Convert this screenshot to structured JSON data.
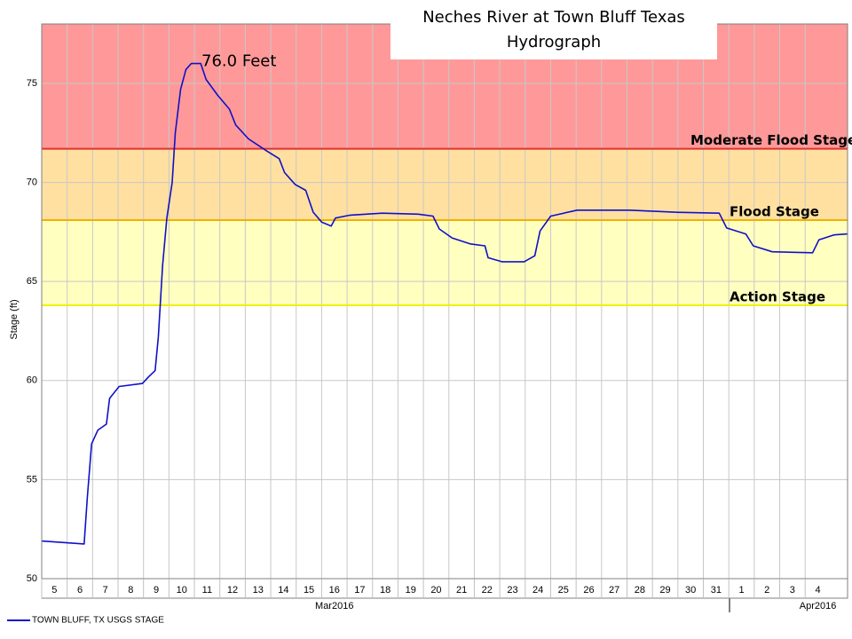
{
  "chart_data": {
    "type": "line",
    "title": [
      "Neches River at Town Bluff Texas",
      "Hydrograph"
    ],
    "ylabel": "Stage (ft)",
    "annotation": {
      "text": "76.0 Feet",
      "x": "2016-03-11T00:00",
      "y": 76.0
    },
    "xlim": [
      "2016-03-05T00:00",
      "2016-04-05T16:00"
    ],
    "ylim": [
      50,
      78
    ],
    "yticks": [
      50,
      55,
      60,
      65,
      70,
      75
    ],
    "grid": true,
    "xticks": [
      {
        "value": "2016-03-05",
        "label": "5"
      },
      {
        "value": "2016-03-06",
        "label": "6"
      },
      {
        "value": "2016-03-07",
        "label": "7"
      },
      {
        "value": "2016-03-08",
        "label": "8"
      },
      {
        "value": "2016-03-09",
        "label": "9"
      },
      {
        "value": "2016-03-10",
        "label": "10"
      },
      {
        "value": "2016-03-11",
        "label": "11"
      },
      {
        "value": "2016-03-12",
        "label": "12"
      },
      {
        "value": "2016-03-13",
        "label": "13"
      },
      {
        "value": "2016-03-14",
        "label": "14"
      },
      {
        "value": "2016-03-15",
        "label": "15"
      },
      {
        "value": "2016-03-16",
        "label": "16"
      },
      {
        "value": "2016-03-17",
        "label": "17"
      },
      {
        "value": "2016-03-18",
        "label": "18"
      },
      {
        "value": "2016-03-19",
        "label": "19"
      },
      {
        "value": "2016-03-20",
        "label": "20"
      },
      {
        "value": "2016-03-21",
        "label": "21"
      },
      {
        "value": "2016-03-22",
        "label": "22"
      },
      {
        "value": "2016-03-23",
        "label": "23"
      },
      {
        "value": "2016-03-24",
        "label": "24"
      },
      {
        "value": "2016-03-25",
        "label": "25"
      },
      {
        "value": "2016-03-26",
        "label": "26"
      },
      {
        "value": "2016-03-27",
        "label": "27"
      },
      {
        "value": "2016-03-28",
        "label": "28"
      },
      {
        "value": "2016-03-29",
        "label": "29"
      },
      {
        "value": "2016-03-30",
        "label": "30"
      },
      {
        "value": "2016-03-31",
        "label": "31"
      },
      {
        "value": "2016-04-01",
        "label": "1"
      },
      {
        "value": "2016-04-02",
        "label": "2"
      },
      {
        "value": "2016-04-03",
        "label": "3"
      },
      {
        "value": "2016-04-04",
        "label": "4"
      }
    ],
    "month_labels": [
      {
        "value": "2016-03-16",
        "label": "Mar2016"
      },
      {
        "value": "2016-04-04",
        "label": "Apr2016"
      }
    ],
    "stages": [
      {
        "name": "Moderate Flood Stage",
        "value": 71.7,
        "line_color": "#e03030",
        "band_color": "#ff9999"
      },
      {
        "name": "Flood Stage",
        "value": 68.1,
        "line_color": "#f0b000",
        "band_color": "#ffe0a0"
      },
      {
        "name": "Action Stage",
        "value": 63.8,
        "line_color": "#f0f000",
        "band_color": "#ffffc0"
      }
    ],
    "series": [
      {
        "name": "TOWN BLUFF, TX USGS STAGE",
        "color": "#1010c8",
        "x": [
          "2016-03-05T00:00",
          "2016-03-06T16:00",
          "2016-03-06T19:00",
          "2016-03-06T23:00",
          "2016-03-07T05:00",
          "2016-03-07T13:00",
          "2016-03-07T16:00",
          "2016-03-08T01:00",
          "2016-03-08T23:00",
          "2016-03-09T05:00",
          "2016-03-09T11:00",
          "2016-03-09T14:00",
          "2016-03-09T18:00",
          "2016-03-09T22:00",
          "2016-03-10T03:00",
          "2016-03-10T06:00",
          "2016-03-10T11:00",
          "2016-03-10T16:00",
          "2016-03-10T21:00",
          "2016-03-11T06:00",
          "2016-03-11T11:00",
          "2016-03-11T22:00",
          "2016-03-12T09:00",
          "2016-03-12T15:00",
          "2016-03-13T03:00",
          "2016-03-13T20:00",
          "2016-03-14T08:00",
          "2016-03-14T13:00",
          "2016-03-14T23:00",
          "2016-03-15T09:00",
          "2016-03-15T16:00",
          "2016-03-16T00:00",
          "2016-03-16T09:00",
          "2016-03-16T13:00",
          "2016-03-17T03:00",
          "2016-03-18T09:00",
          "2016-03-19T19:00",
          "2016-03-20T09:00",
          "2016-03-20T15:00",
          "2016-03-21T03:00",
          "2016-03-21T20:00",
          "2016-03-22T10:00",
          "2016-03-22T13:00",
          "2016-03-23T02:00",
          "2016-03-23T23:00",
          "2016-03-24T09:00",
          "2016-03-24T14:00",
          "2016-03-25T00:00",
          "2016-03-26T01:00",
          "2016-03-28T02:00",
          "2016-03-29T21:00",
          "2016-03-31T15:00",
          "2016-03-31T22:00",
          "2016-04-01T16:00",
          "2016-04-01T23:00",
          "2016-04-02T17:00",
          "2016-04-04T07:00",
          "2016-04-04T13:00",
          "2016-04-05T03:00",
          "2016-04-05T16:00"
        ],
        "values": [
          51.9,
          51.75,
          54.1,
          56.8,
          57.5,
          57.8,
          59.1,
          59.7,
          59.85,
          60.2,
          60.5,
          62.2,
          65.8,
          68.2,
          70.0,
          72.5,
          74.7,
          75.7,
          76.0,
          76.0,
          75.2,
          74.4,
          73.7,
          72.9,
          72.2,
          71.6,
          71.2,
          70.5,
          69.9,
          69.6,
          68.5,
          68.0,
          67.8,
          68.2,
          68.35,
          68.45,
          68.4,
          68.3,
          67.65,
          67.2,
          66.9,
          66.8,
          66.2,
          66.0,
          66.0,
          66.3,
          67.55,
          68.3,
          68.6,
          68.6,
          68.5,
          68.45,
          67.7,
          67.4,
          66.8,
          66.5,
          66.45,
          67.1,
          67.35,
          67.4
        ]
      }
    ]
  }
}
